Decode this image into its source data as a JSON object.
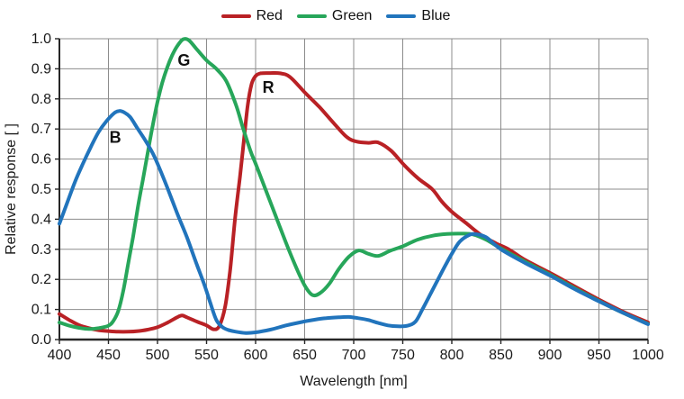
{
  "chart_data": {
    "type": "line",
    "title": "",
    "xlabel": "Wavelength [nm]",
    "ylabel": "Relative response [ ]",
    "xlim": [
      400,
      1000
    ],
    "ylim": [
      0.0,
      1.0
    ],
    "x_ticks": [
      "400",
      "450",
      "500",
      "550",
      "600",
      "650",
      "700",
      "750",
      "800",
      "850",
      "900",
      "950",
      "1000"
    ],
    "y_ticks": [
      "0.0",
      "0.1",
      "0.2",
      "0.3",
      "0.4",
      "0.5",
      "0.6",
      "0.7",
      "0.8",
      "0.9",
      "1.0"
    ],
    "grid": true,
    "legend_position": "top-center",
    "colors": {
      "grid": "#8c8c8c",
      "axis": "#262626",
      "text": "#1a1a1a"
    },
    "annotations": [
      {
        "text": "B",
        "x": 457,
        "y": 0.672
      },
      {
        "text": "G",
        "x": 527,
        "y": 0.928
      },
      {
        "text": "R",
        "x": 613,
        "y": 0.838
      }
    ],
    "series": [
      {
        "name": "Red",
        "color": "#b92125",
        "points": [
          [
            400,
            0.085
          ],
          [
            410,
            0.065
          ],
          [
            420,
            0.048
          ],
          [
            430,
            0.038
          ],
          [
            440,
            0.031
          ],
          [
            450,
            0.028
          ],
          [
            460,
            0.026
          ],
          [
            470,
            0.026
          ],
          [
            480,
            0.028
          ],
          [
            490,
            0.033
          ],
          [
            500,
            0.041
          ],
          [
            510,
            0.056
          ],
          [
            520,
            0.074
          ],
          [
            525,
            0.08
          ],
          [
            530,
            0.074
          ],
          [
            540,
            0.06
          ],
          [
            550,
            0.047
          ],
          [
            557,
            0.034
          ],
          [
            563,
            0.045
          ],
          [
            569,
            0.11
          ],
          [
            574,
            0.23
          ],
          [
            579,
            0.4
          ],
          [
            584,
            0.54
          ],
          [
            588,
            0.66
          ],
          [
            592,
            0.78
          ],
          [
            596,
            0.85
          ],
          [
            600,
            0.876
          ],
          [
            605,
            0.885
          ],
          [
            615,
            0.886
          ],
          [
            625,
            0.885
          ],
          [
            635,
            0.873
          ],
          [
            650,
            0.822
          ],
          [
            665,
            0.773
          ],
          [
            680,
            0.718
          ],
          [
            693,
            0.673
          ],
          [
            703,
            0.658
          ],
          [
            715,
            0.654
          ],
          [
            725,
            0.655
          ],
          [
            738,
            0.628
          ],
          [
            752,
            0.578
          ],
          [
            766,
            0.535
          ],
          [
            780,
            0.5
          ],
          [
            790,
            0.458
          ],
          [
            800,
            0.425
          ],
          [
            815,
            0.386
          ],
          [
            830,
            0.347
          ],
          [
            845,
            0.32
          ],
          [
            858,
            0.3
          ],
          [
            875,
            0.264
          ],
          [
            900,
            0.222
          ],
          [
            925,
            0.177
          ],
          [
            950,
            0.133
          ],
          [
            975,
            0.092
          ],
          [
            1000,
            0.057
          ]
        ]
      },
      {
        "name": "Green",
        "color": "#27a65a",
        "points": [
          [
            400,
            0.057
          ],
          [
            410,
            0.046
          ],
          [
            420,
            0.039
          ],
          [
            430,
            0.035
          ],
          [
            440,
            0.038
          ],
          [
            450,
            0.046
          ],
          [
            455,
            0.062
          ],
          [
            460,
            0.095
          ],
          [
            465,
            0.16
          ],
          [
            470,
            0.25
          ],
          [
            475,
            0.34
          ],
          [
            480,
            0.44
          ],
          [
            485,
            0.53
          ],
          [
            490,
            0.62
          ],
          [
            495,
            0.71
          ],
          [
            500,
            0.79
          ],
          [
            505,
            0.855
          ],
          [
            510,
            0.905
          ],
          [
            515,
            0.945
          ],
          [
            520,
            0.975
          ],
          [
            526,
            0.998
          ],
          [
            532,
            0.995
          ],
          [
            540,
            0.965
          ],
          [
            550,
            0.928
          ],
          [
            560,
            0.9
          ],
          [
            570,
            0.86
          ],
          [
            580,
            0.78
          ],
          [
            587,
            0.705
          ],
          [
            595,
            0.625
          ],
          [
            600,
            0.585
          ],
          [
            610,
            0.5
          ],
          [
            620,
            0.415
          ],
          [
            630,
            0.33
          ],
          [
            640,
            0.25
          ],
          [
            650,
            0.18
          ],
          [
            658,
            0.148
          ],
          [
            666,
            0.155
          ],
          [
            675,
            0.185
          ],
          [
            685,
            0.235
          ],
          [
            695,
            0.275
          ],
          [
            705,
            0.296
          ],
          [
            715,
            0.285
          ],
          [
            725,
            0.278
          ],
          [
            737,
            0.295
          ],
          [
            750,
            0.31
          ],
          [
            765,
            0.332
          ],
          [
            780,
            0.345
          ],
          [
            795,
            0.351
          ],
          [
            810,
            0.352
          ],
          [
            822,
            0.349
          ],
          [
            835,
            0.332
          ],
          [
            850,
            0.303
          ],
          [
            875,
            0.258
          ],
          [
            900,
            0.216
          ],
          [
            925,
            0.171
          ],
          [
            950,
            0.128
          ],
          [
            975,
            0.088
          ],
          [
            1000,
            0.052
          ]
        ]
      },
      {
        "name": "Blue",
        "color": "#2174bc",
        "points": [
          [
            400,
            0.385
          ],
          [
            408,
            0.455
          ],
          [
            416,
            0.525
          ],
          [
            424,
            0.585
          ],
          [
            432,
            0.64
          ],
          [
            440,
            0.69
          ],
          [
            448,
            0.726
          ],
          [
            456,
            0.753
          ],
          [
            461,
            0.76
          ],
          [
            466,
            0.755
          ],
          [
            472,
            0.74
          ],
          [
            480,
            0.7
          ],
          [
            488,
            0.66
          ],
          [
            495,
            0.62
          ],
          [
            500,
            0.585
          ],
          [
            510,
            0.505
          ],
          [
            520,
            0.42
          ],
          [
            530,
            0.34
          ],
          [
            540,
            0.25
          ],
          [
            548,
            0.18
          ],
          [
            554,
            0.12
          ],
          [
            560,
            0.065
          ],
          [
            566,
            0.042
          ],
          [
            572,
            0.032
          ],
          [
            580,
            0.026
          ],
          [
            590,
            0.022
          ],
          [
            600,
            0.024
          ],
          [
            615,
            0.033
          ],
          [
            630,
            0.046
          ],
          [
            645,
            0.057
          ],
          [
            660,
            0.066
          ],
          [
            672,
            0.071
          ],
          [
            685,
            0.074
          ],
          [
            695,
            0.075
          ],
          [
            705,
            0.071
          ],
          [
            715,
            0.065
          ],
          [
            725,
            0.055
          ],
          [
            735,
            0.047
          ],
          [
            745,
            0.044
          ],
          [
            755,
            0.046
          ],
          [
            763,
            0.06
          ],
          [
            770,
            0.1
          ],
          [
            778,
            0.15
          ],
          [
            786,
            0.2
          ],
          [
            794,
            0.25
          ],
          [
            800,
            0.285
          ],
          [
            808,
            0.325
          ],
          [
            818,
            0.348
          ],
          [
            825,
            0.35
          ],
          [
            835,
            0.34
          ],
          [
            850,
            0.3
          ],
          [
            875,
            0.254
          ],
          [
            900,
            0.213
          ],
          [
            925,
            0.168
          ],
          [
            950,
            0.127
          ],
          [
            975,
            0.088
          ],
          [
            1000,
            0.051
          ]
        ]
      }
    ]
  }
}
